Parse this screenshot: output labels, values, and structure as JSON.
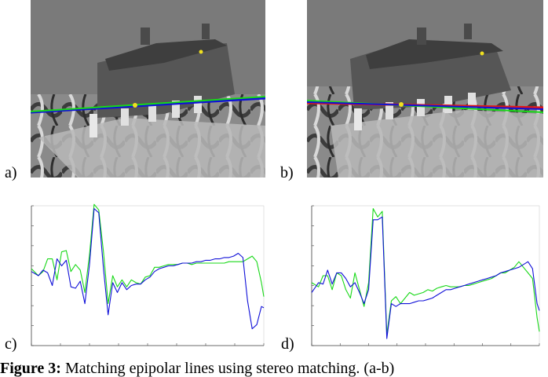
{
  "panels": {
    "a": {
      "label": "a)"
    },
    "b": {
      "label": "b)"
    },
    "c": {
      "label": "c)"
    },
    "d": {
      "label": "d)"
    }
  },
  "colors": {
    "blue_line": "#1010d8",
    "green_line": "#18d818",
    "red_line": "#e01818",
    "yellow_marker": "#f0e020"
  },
  "caption": {
    "figure_label": "Figure 3:",
    "text": " Matching epipolar lines using stereo matching. (a-b)"
  },
  "chart_data": [
    {
      "type": "line",
      "panel": "c",
      "xlim": [
        0,
        100
      ],
      "ylim": [
        0,
        100
      ],
      "x": [
        0,
        3,
        5,
        7,
        9,
        11,
        13,
        15,
        17,
        19,
        21,
        23,
        25,
        27,
        29,
        31,
        33,
        35,
        37,
        39,
        41,
        43,
        45,
        47,
        49,
        51,
        53,
        55,
        57,
        59,
        61,
        63,
        65,
        67,
        69,
        71,
        73,
        75,
        77,
        79,
        81,
        83,
        85,
        87,
        89,
        91,
        93,
        95,
        97,
        99,
        100
      ],
      "series": [
        {
          "values": [
            53,
            50,
            54,
            52,
            43,
            62,
            57,
            61,
            42,
            41,
            46,
            30,
            58,
            98,
            95,
            55,
            22,
            45,
            38,
            45,
            40,
            43,
            44,
            44,
            47,
            49,
            53,
            55,
            56,
            57,
            57,
            58,
            59,
            59,
            59,
            60,
            60,
            61,
            61,
            62,
            62,
            63,
            63,
            64,
            66,
            63,
            32,
            12,
            15,
            28,
            27
          ]
        },
        {
          "values": [
            55,
            50,
            53,
            62,
            62,
            47,
            67,
            68,
            53,
            58,
            54,
            38,
            65,
            101,
            97,
            67,
            30,
            50,
            42,
            47,
            42,
            47,
            45,
            44,
            49,
            50,
            56,
            56,
            57,
            58,
            58,
            58,
            59,
            59,
            58,
            59,
            59,
            59,
            59,
            59,
            59,
            59,
            60,
            60,
            60,
            60,
            62,
            64,
            60,
            45,
            35
          ]
        }
      ]
    },
    {
      "type": "line",
      "panel": "d",
      "xlim": [
        0,
        100
      ],
      "ylim": [
        0,
        100
      ],
      "x": [
        0,
        3,
        5,
        7,
        9,
        11,
        13,
        15,
        17,
        19,
        21,
        23,
        25,
        27,
        29,
        31,
        33,
        35,
        37,
        39,
        41,
        43,
        45,
        47,
        49,
        51,
        53,
        55,
        57,
        59,
        61,
        63,
        65,
        67,
        69,
        71,
        73,
        75,
        77,
        79,
        81,
        83,
        85,
        87,
        89,
        91,
        93,
        95,
        97,
        99,
        100
      ],
      "series": [
        {
          "values": [
            38,
            45,
            44,
            54,
            44,
            52,
            52,
            48,
            42,
            45,
            38,
            30,
            40,
            90,
            90,
            92,
            5,
            30,
            28,
            30,
            30,
            30,
            31,
            32,
            32,
            33,
            34,
            36,
            38,
            40,
            40,
            41,
            42,
            43,
            44,
            45,
            46,
            47,
            48,
            49,
            50,
            52,
            53,
            54,
            55,
            56,
            58,
            60,
            55,
            30,
            25
          ]
        },
        {
          "values": [
            45,
            42,
            50,
            50,
            40,
            52,
            50,
            40,
            34,
            52,
            40,
            28,
            45,
            98,
            92,
            96,
            8,
            32,
            35,
            30,
            34,
            38,
            36,
            37,
            38,
            40,
            39,
            41,
            42,
            43,
            42,
            42,
            42,
            43,
            43,
            44,
            45,
            46,
            47,
            48,
            50,
            52,
            52,
            54,
            56,
            60,
            56,
            52,
            48,
            20,
            10
          ]
        }
      ]
    }
  ]
}
